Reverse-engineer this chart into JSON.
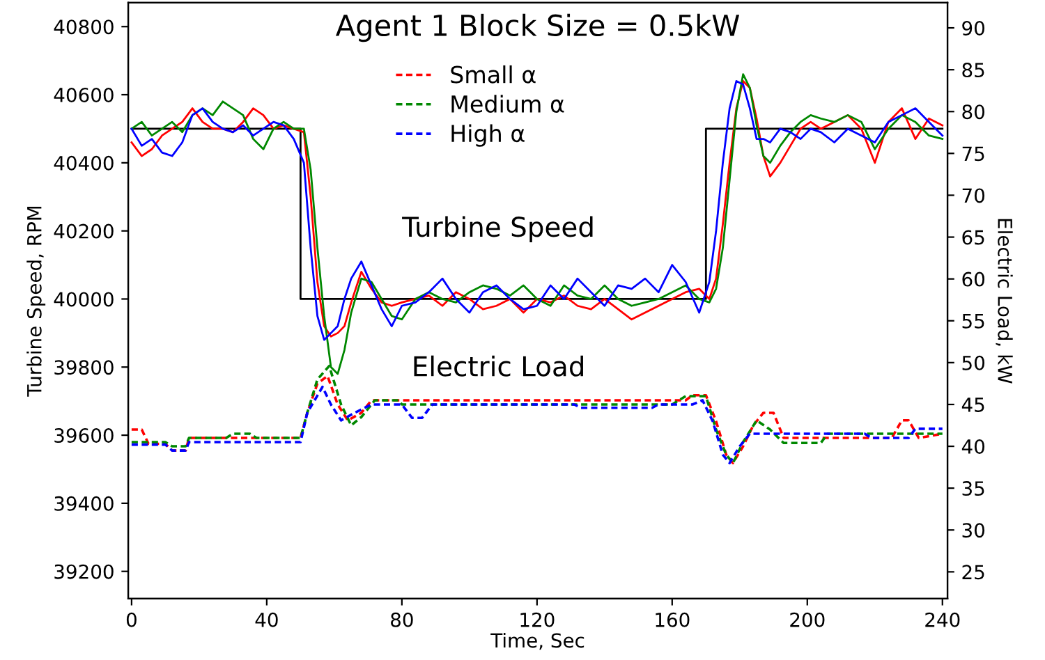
{
  "chart_data": {
    "type": "line",
    "title": "Agent 1 Block Size = 0.5kW",
    "xlabel": "Time, Sec",
    "ylabel": "Turbine Speed, RPM",
    "y2label": "Electric Load, kW",
    "xlim": [
      -1,
      241.5
    ],
    "xticks": [
      0,
      40,
      80,
      120,
      160,
      200,
      240
    ],
    "ylim": [
      39120,
      40870
    ],
    "yticks": [
      39200,
      39400,
      39600,
      39800,
      40000,
      40200,
      40400,
      40600,
      40800
    ],
    "y2lim": [
      21.8,
      93
    ],
    "y2ticks": [
      25,
      30,
      35,
      40,
      45,
      50,
      55,
      60,
      65,
      70,
      75,
      80,
      85,
      90
    ],
    "grid": false,
    "legend": "top",
    "annotations": [
      "Turbine Speed",
      "Electric Load"
    ],
    "series": [
      {
        "color": "#000000",
        "x": [
          0,
          50,
          50,
          170,
          170,
          240
        ],
        "values": [
          40500,
          40500,
          40000,
          40000,
          40500,
          40500
        ]
      },
      {
        "color": "#ff0000",
        "x": [
          0,
          3,
          6,
          9,
          12,
          15,
          18,
          21,
          24,
          27,
          30,
          33,
          36,
          39,
          42,
          45,
          48,
          51,
          53,
          55,
          57,
          59,
          61,
          63,
          65,
          68,
          71,
          74,
          77,
          80,
          84,
          88,
          92,
          96,
          100,
          104,
          108,
          112,
          116,
          120,
          124,
          128,
          132,
          136,
          140,
          144,
          148,
          152,
          156,
          160,
          164,
          168,
          171,
          173,
          175,
          177,
          179,
          181,
          183,
          185,
          187,
          189,
          192,
          195,
          198,
          201,
          204,
          208,
          212,
          216,
          220,
          224,
          228,
          232,
          236,
          240
        ],
        "values": [
          40460,
          40420,
          40440,
          40480,
          40500,
          40520,
          40560,
          40520,
          40500,
          40500,
          40490,
          40520,
          40560,
          40540,
          40500,
          40510,
          40500,
          40490,
          40300,
          40050,
          39920,
          39890,
          39900,
          39920,
          39990,
          40080,
          40030,
          39990,
          39980,
          39990,
          40000,
          40010,
          39980,
          40020,
          40000,
          39970,
          39980,
          40000,
          39960,
          40000,
          39990,
          40010,
          39980,
          39970,
          40000,
          39970,
          39940,
          39960,
          39980,
          40000,
          40020,
          40030,
          40000,
          40060,
          40220,
          40400,
          40560,
          40640,
          40620,
          40530,
          40420,
          40360,
          40400,
          40450,
          40500,
          40520,
          40500,
          40520,
          40540,
          40500,
          40400,
          40520,
          40560,
          40470,
          40530,
          40510
        ]
      },
      {
        "color": "#008800",
        "x": [
          0,
          3,
          6,
          9,
          12,
          15,
          18,
          21,
          24,
          27,
          30,
          33,
          36,
          39,
          42,
          45,
          48,
          51,
          53,
          55,
          57,
          59,
          61,
          63,
          65,
          68,
          71,
          74,
          77,
          80,
          84,
          88,
          92,
          96,
          100,
          104,
          108,
          112,
          116,
          120,
          124,
          128,
          132,
          136,
          140,
          144,
          148,
          152,
          156,
          160,
          164,
          168,
          171,
          173,
          175,
          177,
          179,
          181,
          183,
          185,
          187,
          189,
          192,
          195,
          198,
          201,
          204,
          208,
          212,
          216,
          220,
          224,
          228,
          232,
          236,
          240
        ],
        "values": [
          40500,
          40520,
          40480,
          40500,
          40520,
          40490,
          40540,
          40560,
          40540,
          40580,
          40560,
          40540,
          40470,
          40440,
          40500,
          40520,
          40500,
          40500,
          40380,
          40150,
          39950,
          39800,
          39780,
          39850,
          39960,
          40060,
          40050,
          40000,
          39950,
          39940,
          40000,
          40020,
          40000,
          39990,
          40020,
          40040,
          40030,
          40010,
          40040,
          40000,
          39980,
          40040,
          40010,
          40000,
          40040,
          40000,
          39980,
          39990,
          40000,
          40020,
          40040,
          40000,
          39990,
          40030,
          40150,
          40350,
          40550,
          40660,
          40620,
          40510,
          40420,
          40400,
          40450,
          40490,
          40520,
          40540,
          40530,
          40520,
          40540,
          40520,
          40440,
          40500,
          40540,
          40520,
          40480,
          40470
        ]
      },
      {
        "color": "#0000ff",
        "x": [
          0,
          3,
          6,
          9,
          12,
          15,
          18,
          21,
          24,
          27,
          30,
          33,
          36,
          39,
          42,
          45,
          48,
          51,
          53,
          55,
          57,
          59,
          61,
          63,
          65,
          68,
          71,
          74,
          77,
          80,
          84,
          88,
          92,
          96,
          100,
          104,
          108,
          112,
          116,
          120,
          124,
          128,
          132,
          136,
          140,
          144,
          148,
          152,
          156,
          160,
          164,
          168,
          171,
          173,
          175,
          177,
          179,
          181,
          183,
          185,
          187,
          189,
          192,
          195,
          198,
          201,
          204,
          208,
          212,
          216,
          220,
          224,
          228,
          232,
          236,
          240
        ],
        "values": [
          40500,
          40450,
          40470,
          40430,
          40420,
          40460,
          40540,
          40560,
          40520,
          40500,
          40490,
          40510,
          40480,
          40500,
          40520,
          40510,
          40470,
          40400,
          40150,
          39950,
          39880,
          39900,
          39920,
          40000,
          40060,
          40110,
          40040,
          39970,
          39920,
          39980,
          39990,
          40020,
          40060,
          40000,
          39960,
          40020,
          40040,
          40000,
          39970,
          39980,
          40040,
          40000,
          40060,
          40020,
          39980,
          40040,
          40030,
          40060,
          40020,
          40100,
          40050,
          39960,
          40050,
          40200,
          40400,
          40560,
          40640,
          40630,
          40560,
          40470,
          40470,
          40460,
          40500,
          40490,
          40470,
          40500,
          40490,
          40460,
          40500,
          40480,
          40460,
          40520,
          40540,
          40560,
          40520,
          40480
        ]
      },
      {
        "name": "Small α",
        "color": "#ff0000",
        "axis": "y2",
        "line_style": "dashed",
        "x": [
          0,
          3,
          5,
          10,
          12,
          16,
          17,
          30,
          50,
          52,
          55,
          58,
          61,
          64,
          68,
          71,
          90,
          164,
          166,
          170,
          173,
          176,
          178,
          181,
          184,
          187,
          190,
          193,
          200,
          225,
          228,
          230,
          233,
          240
        ],
        "values": [
          42,
          42,
          40.3,
          40.3,
          39.5,
          39.5,
          41,
          41,
          41,
          44,
          47.5,
          48.4,
          45,
          43.1,
          44,
          45.5,
          45.5,
          45.5,
          46.1,
          46.1,
          43,
          39,
          38,
          40,
          42.5,
          44,
          44,
          41,
          41,
          41,
          43.1,
          43.1,
          41,
          41.5
        ]
      },
      {
        "name": "Medium α",
        "color": "#008800",
        "axis": "y2",
        "line_style": "dashed",
        "x": [
          0,
          10,
          12,
          16,
          17,
          28,
          30,
          35,
          37,
          50,
          52,
          55,
          58.5,
          62,
          65,
          68,
          71,
          72,
          79,
          80,
          160,
          164,
          170,
          173,
          176,
          178,
          181,
          185,
          189,
          193,
          204,
          206,
          240
        ],
        "values": [
          40.5,
          40.5,
          40,
          40,
          41,
          41,
          41.5,
          41.5,
          41,
          41,
          44,
          48,
          49.6,
          45,
          42.5,
          43.5,
          45,
          45.5,
          45.5,
          45,
          45,
          46,
          46,
          42,
          39,
          38,
          40.5,
          43.1,
          42,
          40.4,
          40.4,
          41.5,
          41.5
        ]
      },
      {
        "name": "High α",
        "color": "#0000ff",
        "axis": "y2",
        "line_style": "dashed",
        "x": [
          0,
          10,
          12,
          16,
          17,
          50,
          52,
          56.5,
          59,
          62,
          66,
          71,
          80,
          83,
          86,
          89,
          131,
          133,
          154,
          156,
          166,
          169,
          172,
          175,
          177,
          180,
          183,
          217,
          219,
          230,
          232,
          240
        ],
        "values": [
          40.2,
          40.2,
          39.5,
          39.5,
          40.5,
          40.5,
          44,
          47.1,
          45,
          43.1,
          44,
          45,
          45,
          43.4,
          43.4,
          45,
          45,
          44.6,
          44.6,
          45,
          45,
          45.5,
          43,
          39,
          38,
          40,
          41.5,
          41.5,
          41,
          41,
          42.1,
          42.1
        ]
      }
    ]
  }
}
